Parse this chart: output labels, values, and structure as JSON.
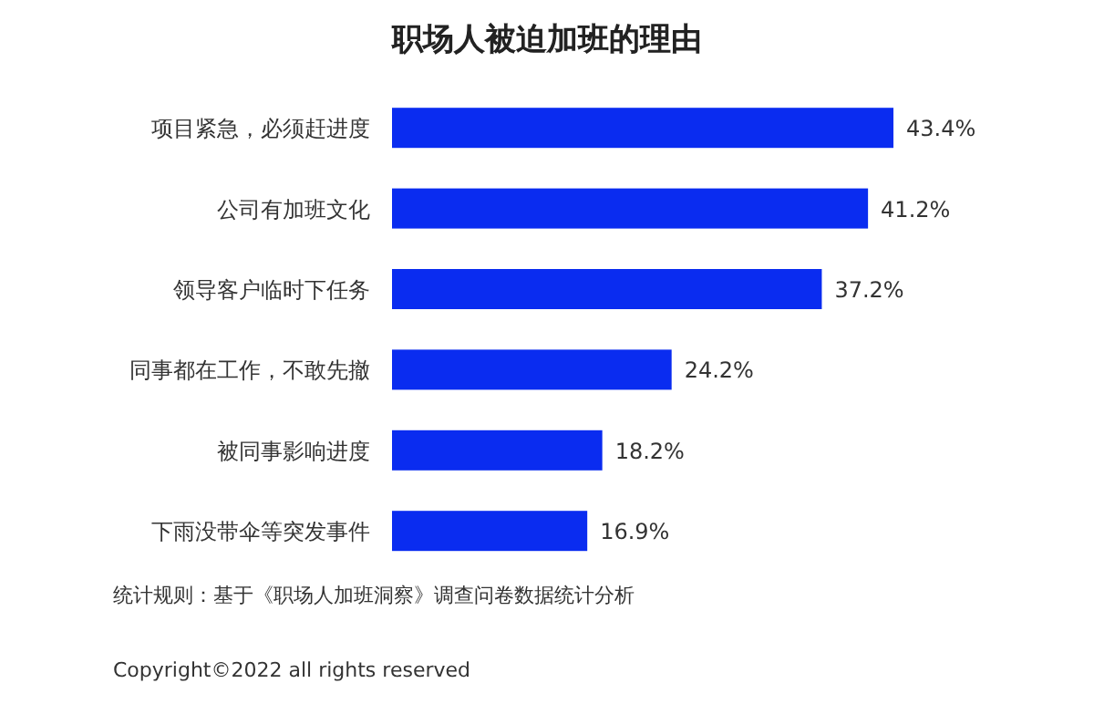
{
  "chart_data": {
    "type": "bar",
    "orientation": "horizontal",
    "title": "职场人被迫加班的理由",
    "categories": [
      "项目紧急，必须赶进度",
      "公司有加班文化",
      "领导客户临时下任务",
      "同事都在工作，不敢先撤",
      "被同事影响进度",
      "下雨没带伞等突发事件"
    ],
    "values": [
      43.4,
      41.2,
      37.2,
      24.2,
      18.2,
      16.9
    ],
    "value_labels": [
      "43.4%",
      "41.2%",
      "37.2%",
      "24.2%",
      "18.2%",
      "16.9%"
    ],
    "color": "#0a2cf0",
    "tick_labels": "y",
    "annotations": [
      "统计规则：基于《职场人加班洞察》调查问卷数据统计分析",
      "Copyright©2022 all rights reserved"
    ]
  }
}
